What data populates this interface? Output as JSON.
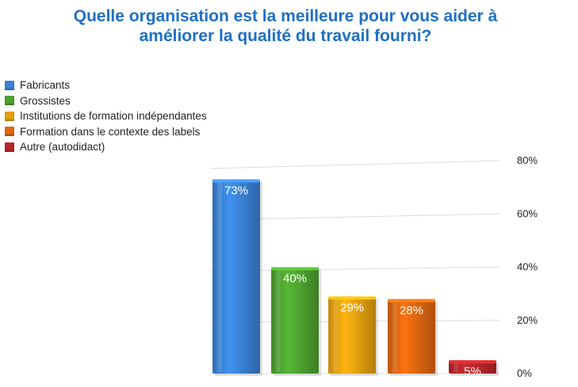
{
  "chart_data": {
    "type": "bar",
    "title": "Quelle organisation est la meilleure pour vous aider à améliorer la qualité du travail fourni?",
    "categories": [
      "Fabricants",
      "Grossistes",
      "Institutions de formation indépendantes",
      "Formation dans le contexte des labels",
      "Autre (autodidact)"
    ],
    "values": [
      73,
      40,
      29,
      28,
      5
    ],
    "data_labels": [
      "73%",
      "40%",
      "29%",
      "28%",
      "5%"
    ],
    "colors": [
      "#3a82d6",
      "#4ea32f",
      "#e5a20e",
      "#e0670f",
      "#b8262a"
    ],
    "ylim": [
      0,
      80
    ],
    "y_ticks": [
      {
        "value": 0,
        "label": "0%"
      },
      {
        "value": 20,
        "label": "20%"
      },
      {
        "value": 40,
        "label": "40%"
      },
      {
        "value": 60,
        "label": "60%"
      },
      {
        "value": 80,
        "label": "80%"
      }
    ],
    "y_axis_position": "right",
    "legend_position": "top-left",
    "grid": true,
    "xlabel": "",
    "ylabel": ""
  }
}
